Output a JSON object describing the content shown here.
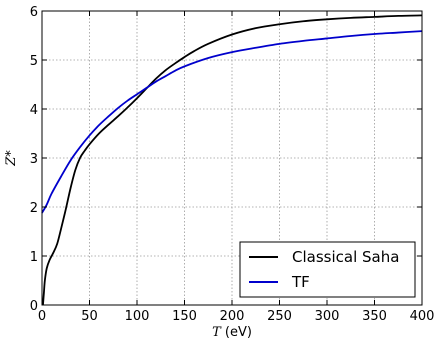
{
  "chart_data": {
    "type": "line",
    "title": "",
    "xlabel_var": "T",
    "xlabel_unit": " (eV)",
    "ylabel": "Z*",
    "xlim": [
      0,
      400
    ],
    "ylim": [
      0,
      6
    ],
    "xticks": [
      0,
      50,
      100,
      150,
      200,
      250,
      300,
      350,
      400
    ],
    "yticks": [
      0,
      1,
      2,
      3,
      4,
      5,
      6
    ],
    "grid": true,
    "legend_position": "lower-right",
    "series": [
      {
        "name": "Classical Saha",
        "color": "#000000",
        "x": [
          1,
          2,
          3,
          5,
          8,
          12,
          16,
          20,
          25,
          30,
          35,
          40,
          45,
          50,
          60,
          70,
          80,
          90,
          100,
          110,
          120,
          130,
          140,
          150,
          160,
          175,
          200,
          225,
          250,
          275,
          300,
          325,
          350,
          375,
          400
        ],
        "y": [
          0.0,
          0.25,
          0.5,
          0.75,
          0.92,
          1.07,
          1.25,
          1.55,
          1.95,
          2.38,
          2.75,
          3.0,
          3.15,
          3.28,
          3.5,
          3.68,
          3.85,
          4.03,
          4.22,
          4.42,
          4.62,
          4.79,
          4.93,
          5.06,
          5.18,
          5.33,
          5.52,
          5.65,
          5.73,
          5.79,
          5.83,
          5.86,
          5.88,
          5.9,
          5.91
        ]
      },
      {
        "name": "TF",
        "color": "#0000cc",
        "x": [
          0,
          5,
          10,
          20,
          30,
          40,
          50,
          60,
          70,
          80,
          90,
          100,
          110,
          120,
          130,
          140,
          150,
          175,
          200,
          225,
          250,
          275,
          300,
          325,
          350,
          375,
          400
        ],
        "y": [
          1.88,
          2.05,
          2.27,
          2.62,
          2.95,
          3.22,
          3.46,
          3.67,
          3.85,
          4.02,
          4.17,
          4.3,
          4.43,
          4.56,
          4.67,
          4.78,
          4.87,
          5.04,
          5.16,
          5.25,
          5.33,
          5.39,
          5.44,
          5.49,
          5.53,
          5.56,
          5.59
        ]
      }
    ]
  }
}
